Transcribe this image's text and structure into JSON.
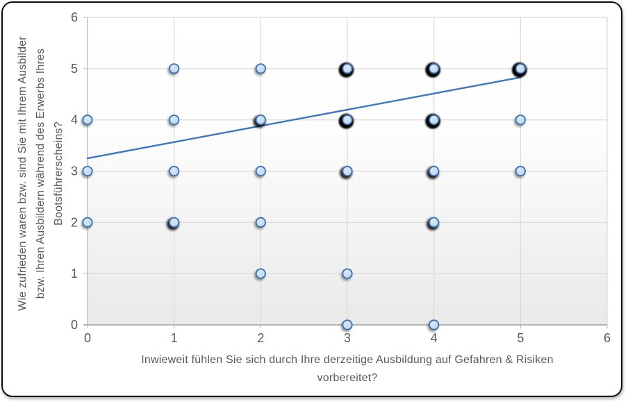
{
  "chart_data": {
    "type": "scatter",
    "title": "",
    "xlabel_line1": "Inwieweit fühlen Sie sich durch Ihre derzeitige Ausbildung auf Gefahren & Risiken",
    "xlabel_line2": "vorbereitet?",
    "ylabel_lines": [
      "Wie zufrieden waren bzw. sind Sie mit Ihrem Ausbilder",
      "bzw. Ihren Ausbildern während des Erwerbs Ihres",
      "Bootsführerscheins?"
    ],
    "xlim": [
      0,
      6
    ],
    "ylim": [
      0,
      6
    ],
    "x_ticks": [
      "0",
      "1",
      "2",
      "3",
      "4",
      "5",
      "6"
    ],
    "y_ticks": [
      "0",
      "1",
      "2",
      "3",
      "4",
      "5",
      "6"
    ],
    "grid": true,
    "legend": "none",
    "points": [
      {
        "x": 1,
        "y": 5,
        "overlap": 1
      },
      {
        "x": 2,
        "y": 5,
        "overlap": 1
      },
      {
        "x": 3,
        "y": 5,
        "overlap": 3
      },
      {
        "x": 4,
        "y": 5,
        "overlap": 3
      },
      {
        "x": 5,
        "y": 5,
        "overlap": 3
      },
      {
        "x": 0,
        "y": 4,
        "overlap": 1
      },
      {
        "x": 1,
        "y": 4,
        "overlap": 1
      },
      {
        "x": 2,
        "y": 4,
        "overlap": 2
      },
      {
        "x": 3,
        "y": 4,
        "overlap": 3
      },
      {
        "x": 4,
        "y": 4,
        "overlap": 3
      },
      {
        "x": 5,
        "y": 4,
        "overlap": 1
      },
      {
        "x": 0,
        "y": 3,
        "overlap": 1
      },
      {
        "x": 1,
        "y": 3,
        "overlap": 1
      },
      {
        "x": 2,
        "y": 3,
        "overlap": 1
      },
      {
        "x": 3,
        "y": 3,
        "overlap": 2
      },
      {
        "x": 4,
        "y": 3,
        "overlap": 2
      },
      {
        "x": 5,
        "y": 3,
        "overlap": 1
      },
      {
        "x": 0,
        "y": 2,
        "overlap": 1
      },
      {
        "x": 1,
        "y": 2,
        "overlap": 2
      },
      {
        "x": 2,
        "y": 2,
        "overlap": 1
      },
      {
        "x": 4,
        "y": 2,
        "overlap": 2
      },
      {
        "x": 2,
        "y": 1,
        "overlap": 1
      },
      {
        "x": 3,
        "y": 1,
        "overlap": 1
      },
      {
        "x": 3,
        "y": 0,
        "overlap": 1
      },
      {
        "x": 4,
        "y": 0,
        "overlap": 1
      }
    ],
    "trendline": {
      "x1": 0,
      "y1": 3.25,
      "x2": 5,
      "y2": 4.83
    },
    "colors": {
      "marker_fill": "#B7D3EF",
      "marker_fill_light": "#D8E7F8",
      "marker_stroke": "#3C6FAF",
      "trend": "#3E76C1",
      "grid": "#D9D9D9",
      "axis_left": "#BFBFBF",
      "axis_bottom": "#B3B3B3",
      "tick_text": "#595959",
      "plot_bg_top": "#FFFFFF",
      "plot_bg_bottom": "#E9E9E9",
      "frame_border": "#0C0C0C"
    }
  }
}
